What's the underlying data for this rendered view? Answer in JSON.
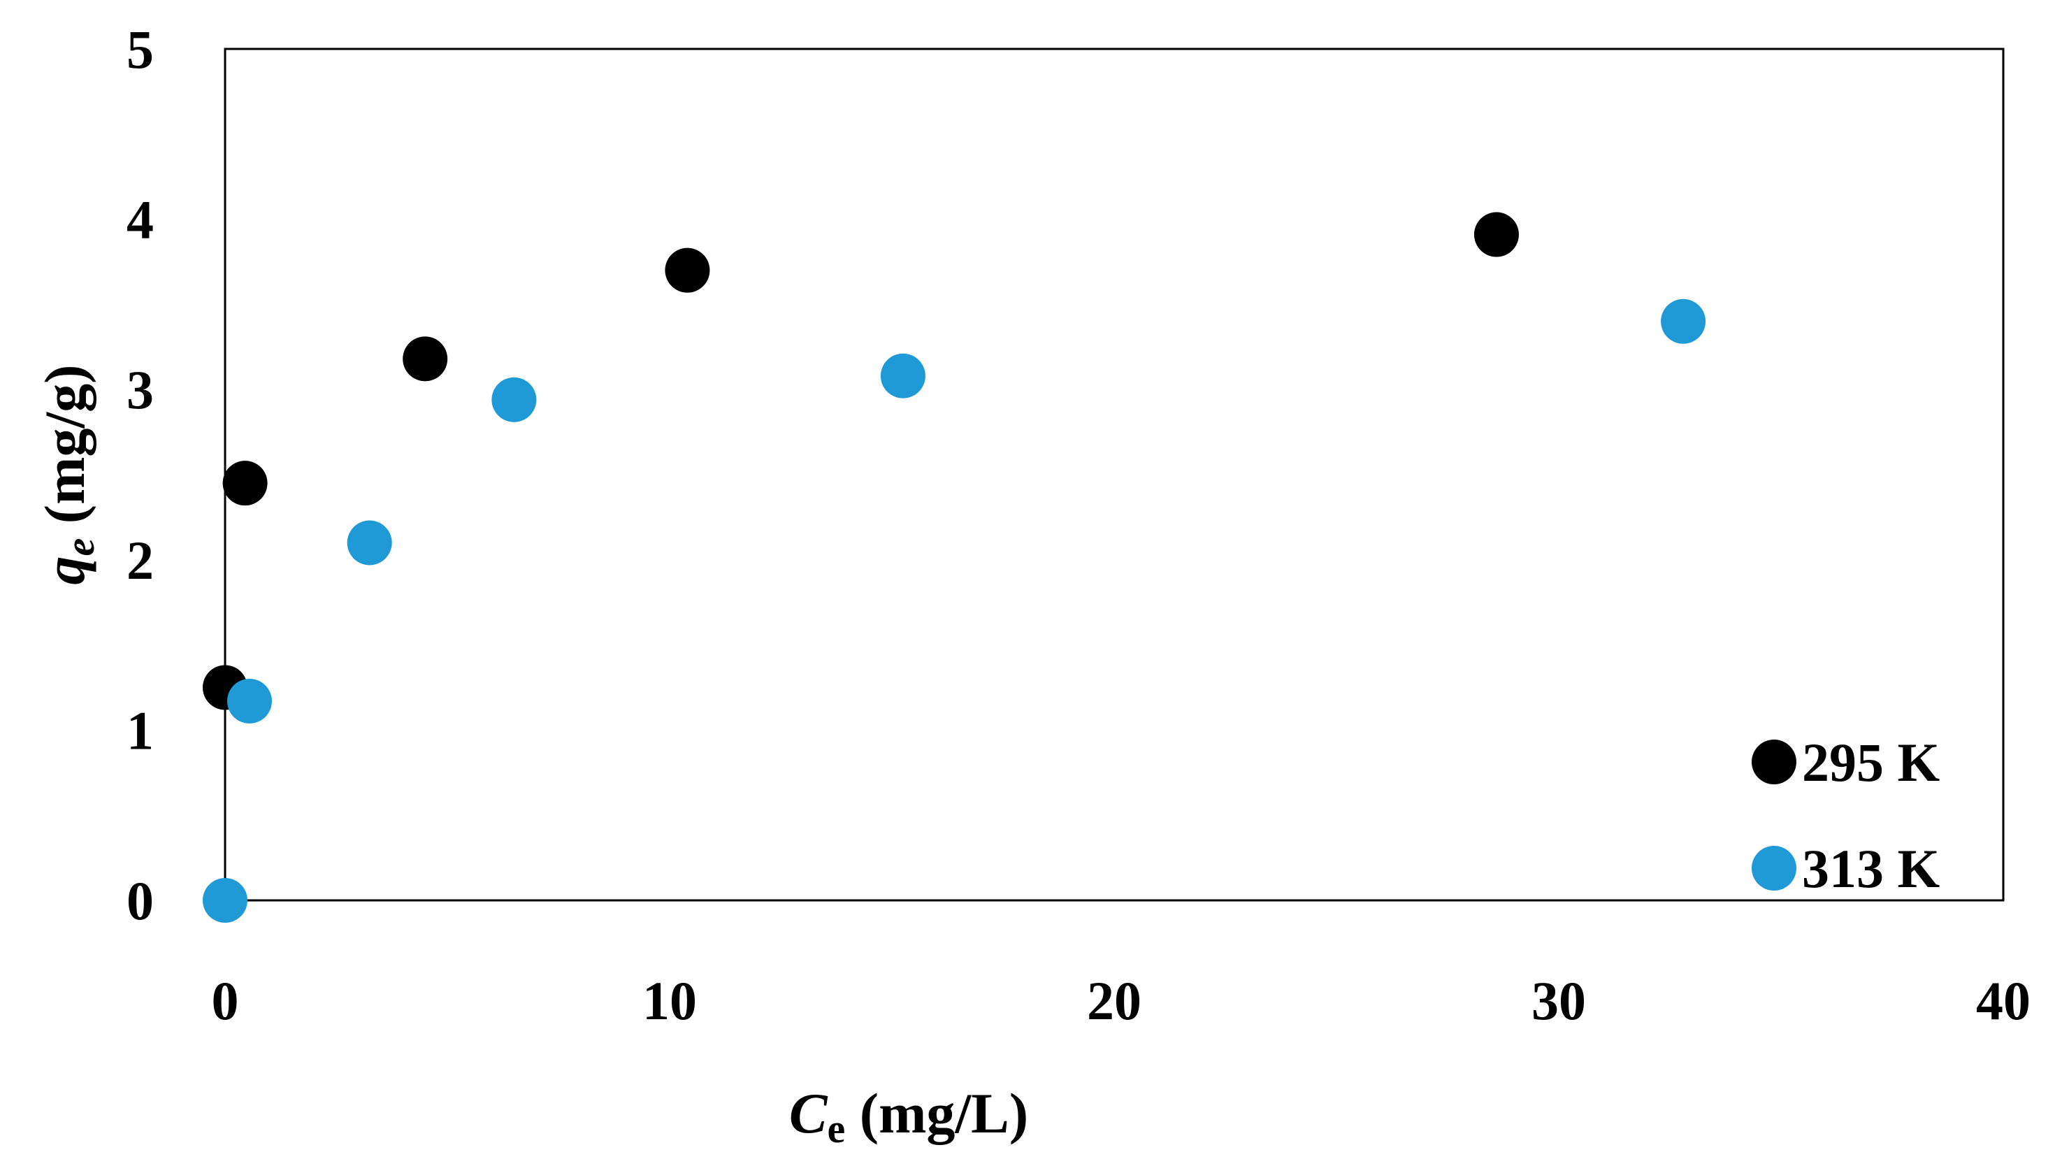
{
  "chart_data": {
    "type": "scatter",
    "title": "",
    "xlabel": {
      "main": "C",
      "subscript": "e",
      "unit": " (mg/L)"
    },
    "ylabel": {
      "main": "q",
      "subscript": "e",
      "unit": " (mg/g)"
    },
    "xlim": [
      0,
      40
    ],
    "ylim": [
      0,
      5
    ],
    "xticks": [
      "0",
      "10",
      "20",
      "30",
      "40"
    ],
    "yticks": [
      "0",
      "1",
      "2",
      "3",
      "4",
      "5"
    ],
    "grid": false,
    "legend_position": "bottom-right",
    "series": [
      {
        "name": "295 K",
        "color": "#000000",
        "x": [
          0.0,
          0.45,
          4.5,
          10.4,
          28.6
        ],
        "y": [
          1.25,
          2.45,
          3.18,
          3.7,
          3.91
        ]
      },
      {
        "name": "313 K",
        "color": "#1f9ad6",
        "x": [
          0.0,
          0.55,
          3.25,
          6.5,
          15.25,
          32.8
        ],
        "y": [
          0.0,
          1.17,
          2.1,
          2.94,
          3.08,
          3.4
        ]
      }
    ]
  }
}
